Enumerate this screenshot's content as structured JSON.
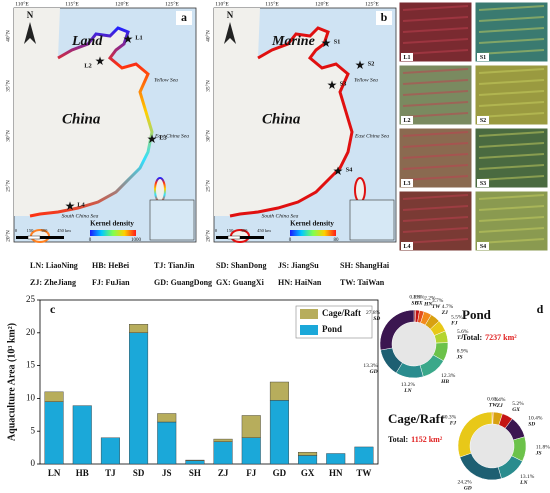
{
  "maps": [
    {
      "panel": "a",
      "title": "Land",
      "sites": [
        "L1",
        "L2",
        "L3",
        "L4"
      ],
      "density_range": [
        0,
        1000
      ]
    },
    {
      "panel": "b",
      "title": "Marine",
      "sites": [
        "S1",
        "S2",
        "S3",
        "S4"
      ],
      "density_range": [
        0,
        80
      ]
    }
  ],
  "map_common": {
    "north": "N",
    "country": "China",
    "seas": [
      "Yellow Sea",
      "East China Sea",
      "South China Sea"
    ],
    "legend_title": "Kernel density",
    "lon_labels": [
      "110°E",
      "115°E",
      "120°E",
      "125°E"
    ],
    "lat_labels": [
      "40°N",
      "35°N",
      "30°N",
      "25°N",
      "20°N"
    ],
    "scale_labels": [
      "0",
      "150",
      "300",
      "450 km"
    ]
  },
  "province_legend": [
    [
      "LN: LiaoNing",
      "HB: HeBei",
      "TJ: TianJin",
      "SD: ShanDong",
      "JS: JiangSu",
      "SH: ShangHai"
    ],
    [
      "ZJ: ZheJiang",
      "FJ: FuJian",
      "GD: GuangDong",
      "GX: GuangXi",
      "HN: HaiNan",
      "TW: TaiWan"
    ]
  ],
  "chart_data": [
    {
      "type": "bar",
      "panel": "c",
      "stacked": true,
      "y_label": "Aquaculture Area (10³ km²)",
      "categories": [
        "LN",
        "HB",
        "TJ",
        "SD",
        "JS",
        "SH",
        "ZJ",
        "FJ",
        "GD",
        "GX",
        "HN",
        "TW"
      ],
      "series": [
        {
          "name": "Pond",
          "color": "#1ba8d9",
          "values": [
            9.5,
            8.9,
            4.0,
            20.0,
            6.4,
            0.5,
            3.4,
            4.0,
            9.7,
            1.3,
            1.6,
            2.6
          ]
        },
        {
          "name": "Cage/Raft",
          "color": "#b7ad5c",
          "values": [
            1.5,
            0,
            0,
            1.3,
            1.3,
            0.1,
            0.4,
            3.4,
            2.8,
            0.5,
            0,
            0
          ]
        }
      ],
      "ylim": [
        0,
        25
      ],
      "yticks": [
        0,
        5,
        10,
        15,
        20,
        25
      ],
      "legend": "top-right"
    },
    {
      "type": "pie",
      "panel": "d",
      "title": "Pond",
      "total_label": "Total:",
      "total_value": "7237 km²",
      "categories": [
        "SH",
        "GX",
        "HN",
        "TW",
        "ZJ",
        "FJ",
        "TJ",
        "JS",
        "HB",
        "LN",
        "GD",
        "SD"
      ],
      "values": [
        0.8,
        1.8,
        2.2,
        3.7,
        4.7,
        5.5,
        5.6,
        8.9,
        12.3,
        13.2,
        13.3,
        27.8
      ],
      "value_labels": [
        "0.8%",
        "1.8%",
        "2.2%",
        "3.7%",
        "4.7%",
        "5.5%",
        "5.6%",
        "8.9%",
        "12.3%",
        "13.2%",
        "13.3%",
        "27.8%"
      ],
      "colors": [
        "#8c0a0a",
        "#c41414",
        "#e4501c",
        "#f28a1c",
        "#d8a010",
        "#e8c818",
        "#b4d430",
        "#6cc24a",
        "#3aa88a",
        "#2a8c8e",
        "#1e5f72",
        "#3b1650"
      ]
    },
    {
      "type": "pie",
      "title": "Cage/Raft",
      "total_label": "Total:",
      "total_value": "1152 km²",
      "categories": [
        "TW",
        "ZJ",
        "GX",
        "SD",
        "JS",
        "LN",
        "GD",
        "FJ"
      ],
      "values": [
        0.6,
        4.4,
        5.2,
        10.4,
        11.8,
        13.1,
        24.2,
        30.3
      ],
      "value_labels": [
        "0.6%",
        "4.4%",
        "5.2%",
        "10.4%",
        "11.8%",
        "13.1%",
        "24.2%",
        "30.3%"
      ],
      "colors": [
        "#f28a1c",
        "#d8a010",
        "#c41414",
        "#3b1650",
        "#6cc24a",
        "#2a8c8e",
        "#1e5f72",
        "#e8c818"
      ]
    }
  ]
}
